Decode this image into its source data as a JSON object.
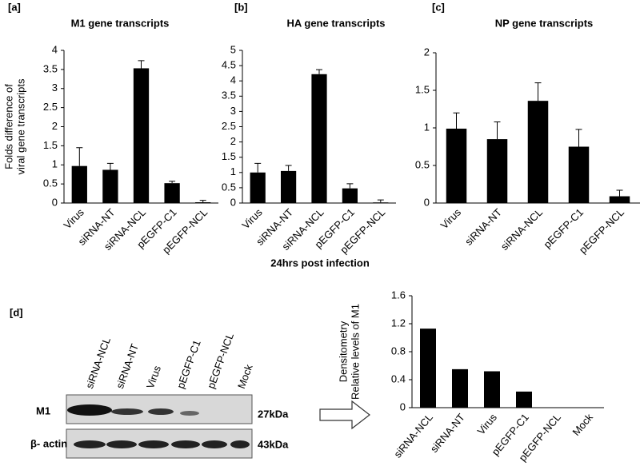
{
  "panel_labels": [
    "[a]",
    "[b]",
    "[c]",
    "[d]"
  ],
  "caption": "24hrs post infection",
  "blot": {
    "lanes": [
      "siRNA-NCL",
      "siRNA-NT",
      "Virus",
      "pEGFP-C1",
      "pEGFP-NCL",
      "Mock"
    ],
    "rows": [
      "M1",
      "β- actin"
    ],
    "sizes": [
      "27kDa",
      "43kDa"
    ]
  },
  "chart_data": [
    {
      "type": "bar",
      "title": "M1 gene transcripts",
      "ylabel": [
        "Folds difference of",
        "viral gene transcripts"
      ],
      "categories": [
        "Virus",
        "siRNA-NT",
        "siRNA-NCL",
        "pEGFP-C1",
        "pEGFP-NCL"
      ],
      "values": [
        0.97,
        0.87,
        3.53,
        0.52,
        0.02
      ],
      "errors": [
        0.48,
        0.17,
        0.2,
        0.05,
        0.05
      ],
      "color": "#000000",
      "ylim": [
        0,
        4
      ],
      "yticks": [
        0,
        0.5,
        1,
        1.5,
        2,
        2.5,
        3,
        3.5,
        4
      ]
    },
    {
      "type": "bar",
      "title": "HA gene transcripts",
      "categories": [
        "Virus",
        "siRNA-NT",
        "siRNA-NCL",
        "pEGFP-C1",
        "pEGFP-NCL"
      ],
      "values": [
        1.0,
        1.05,
        4.22,
        0.48,
        0.02
      ],
      "errors": [
        0.3,
        0.18,
        0.15,
        0.15,
        0.08
      ],
      "color": "#000000",
      "ylim": [
        0,
        5
      ],
      "yticks": [
        0,
        0.5,
        1,
        1.5,
        2,
        2.5,
        3,
        3.5,
        4,
        4.5,
        5
      ]
    },
    {
      "type": "bar",
      "title": "NP gene transcripts",
      "categories": [
        "Virus",
        "siRNA-NT",
        "siRNA-NCL",
        "pEGFP-C1",
        "pEGFP-NCL"
      ],
      "values": [
        0.99,
        0.85,
        1.36,
        0.75,
        0.09
      ],
      "errors": [
        0.21,
        0.23,
        0.24,
        0.23,
        0.08
      ],
      "color": "#000000",
      "ylim": [
        0,
        2
      ],
      "yticks": [
        0,
        0.5,
        1,
        1.5,
        2
      ]
    },
    {
      "type": "bar",
      "ylabel": [
        "Densitometry",
        "Relative levels of M1"
      ],
      "categories": [
        "siRNA-NCL",
        "siRNA-NT",
        "Virus",
        "pEGFP-C1",
        "pEGFP-NCL",
        "Mock"
      ],
      "values": [
        1.13,
        0.55,
        0.52,
        0.23,
        0,
        0
      ],
      "color": "#000000",
      "ylim": [
        0,
        1.6
      ],
      "yticks": [
        0,
        0.4,
        0.8,
        1.2,
        1.6
      ]
    }
  ]
}
